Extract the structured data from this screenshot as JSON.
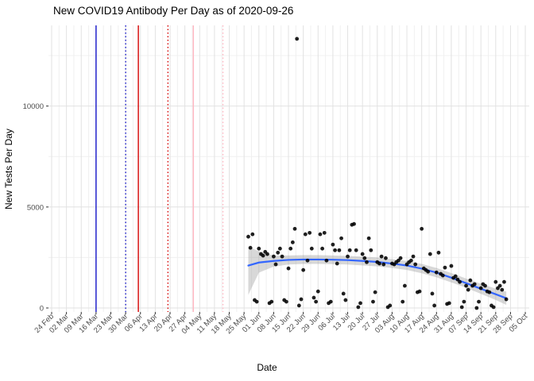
{
  "chart_data": {
    "type": "scatter",
    "title": "New COVID19 Antibody Per Day as of 2020-09-26",
    "xlabel": "Date",
    "ylabel": "New Tests Per Day",
    "x_domain": [
      "2020-02-24",
      "2020-10-05"
    ],
    "ylim": [
      -200,
      14000
    ],
    "grid": "on",
    "legend": "none",
    "y_ticks": [
      0,
      5000,
      10000
    ],
    "y_minor_ticks": [
      2500,
      7500,
      12500
    ],
    "x_tick_labels": [
      "24 Feb",
      "02 Mar",
      "09 Mar",
      "16 Mar",
      "23 Mar",
      "30 Mar",
      "06 Apr",
      "13 Apr",
      "20 Apr",
      "27 Apr",
      "04 May",
      "11 May",
      "18 May",
      "25 May",
      "01 Jun",
      "08 Jun",
      "15 Jun",
      "22 Jun",
      "29 Jun",
      "06 Jul",
      "13 Jul",
      "20 Jul",
      "27 Jul",
      "03 Aug",
      "10 Aug",
      "17 Aug",
      "24 Aug",
      "31 Aug",
      "07 Sep",
      "14 Sep",
      "21 Sep",
      "28 Sep",
      "05 Oct"
    ],
    "x_tick_interval_days": 7,
    "event_vlines": [
      {
        "date": "2020-03-16",
        "style": "solid",
        "color": "#1414c8"
      },
      {
        "date": "2020-03-30",
        "style": "dotted",
        "color": "#1414c8"
      },
      {
        "date": "2020-04-05",
        "style": "solid",
        "color": "#d40000"
      },
      {
        "date": "2020-04-19",
        "style": "dotted",
        "color": "#d40000"
      },
      {
        "date": "2020-05-01",
        "style": "solid",
        "color": "#ffb6c1"
      },
      {
        "date": "2020-05-15",
        "style": "dotted",
        "color": "#ffb6c1"
      }
    ],
    "points": [
      [
        "2020-05-27",
        3530
      ],
      [
        "2020-05-28",
        2980
      ],
      [
        "2020-05-29",
        3650
      ],
      [
        "2020-05-30",
        390
      ],
      [
        "2020-05-31",
        310
      ],
      [
        "2020-06-01",
        2940
      ],
      [
        "2020-06-02",
        2670
      ],
      [
        "2020-06-03",
        2590
      ],
      [
        "2020-06-04",
        2780
      ],
      [
        "2020-06-05",
        2670
      ],
      [
        "2020-06-06",
        240
      ],
      [
        "2020-06-07",
        310
      ],
      [
        "2020-06-08",
        2550
      ],
      [
        "2020-06-09",
        2160
      ],
      [
        "2020-06-10",
        2740
      ],
      [
        "2020-06-11",
        2940
      ],
      [
        "2020-06-12",
        2550
      ],
      [
        "2020-06-13",
        390
      ],
      [
        "2020-06-14",
        310
      ],
      [
        "2020-06-15",
        1960
      ],
      [
        "2020-06-16",
        2940
      ],
      [
        "2020-06-17",
        3250
      ],
      [
        "2020-06-18",
        3920
      ],
      [
        "2020-06-19",
        13330
      ],
      [
        "2020-06-20",
        120
      ],
      [
        "2020-06-21",
        430
      ],
      [
        "2020-06-22",
        1880
      ],
      [
        "2020-06-23",
        3650
      ],
      [
        "2020-06-24",
        2350
      ],
      [
        "2020-06-25",
        3720
      ],
      [
        "2020-06-26",
        2940
      ],
      [
        "2020-06-27",
        510
      ],
      [
        "2020-06-28",
        310
      ],
      [
        "2020-06-29",
        820
      ],
      [
        "2020-06-30",
        3650
      ],
      [
        "2020-07-01",
        2940
      ],
      [
        "2020-07-02",
        3720
      ],
      [
        "2020-07-03",
        2350
      ],
      [
        "2020-07-04",
        240
      ],
      [
        "2020-07-05",
        310
      ],
      [
        "2020-07-06",
        3140
      ],
      [
        "2020-07-07",
        2860
      ],
      [
        "2020-07-08",
        2200
      ],
      [
        "2020-07-09",
        2860
      ],
      [
        "2020-07-10",
        3450
      ],
      [
        "2020-07-11",
        710
      ],
      [
        "2020-07-12",
        390
      ],
      [
        "2020-07-13",
        2550
      ],
      [
        "2020-07-14",
        2860
      ],
      [
        "2020-07-15",
        4120
      ],
      [
        "2020-07-16",
        4160
      ],
      [
        "2020-07-17",
        2860
      ],
      [
        "2020-07-18",
        40
      ],
      [
        "2020-07-19",
        240
      ],
      [
        "2020-07-20",
        2670
      ],
      [
        "2020-07-21",
        2470
      ],
      [
        "2020-07-22",
        2270
      ],
      [
        "2020-07-23",
        3450
      ],
      [
        "2020-07-24",
        2860
      ],
      [
        "2020-07-25",
        310
      ],
      [
        "2020-07-26",
        780
      ],
      [
        "2020-07-27",
        2270
      ],
      [
        "2020-07-28",
        2200
      ],
      [
        "2020-07-29",
        2550
      ],
      [
        "2020-07-30",
        2160
      ],
      [
        "2020-07-31",
        2470
      ],
      [
        "2020-08-01",
        40
      ],
      [
        "2020-08-02",
        120
      ],
      [
        "2020-08-03",
        2200
      ],
      [
        "2020-08-04",
        2160
      ],
      [
        "2020-08-05",
        2270
      ],
      [
        "2020-08-06",
        2350
      ],
      [
        "2020-08-07",
        2470
      ],
      [
        "2020-08-08",
        310
      ],
      [
        "2020-08-09",
        1100
      ],
      [
        "2020-08-10",
        2160
      ],
      [
        "2020-08-11",
        2270
      ],
      [
        "2020-08-12",
        2350
      ],
      [
        "2020-08-13",
        2550
      ],
      [
        "2020-08-14",
        2160
      ],
      [
        "2020-08-15",
        780
      ],
      [
        "2020-08-16",
        820
      ],
      [
        "2020-08-17",
        3920
      ],
      [
        "2020-08-18",
        1960
      ],
      [
        "2020-08-19",
        1880
      ],
      [
        "2020-08-20",
        1800
      ],
      [
        "2020-08-21",
        2670
      ],
      [
        "2020-08-22",
        710
      ],
      [
        "2020-08-23",
        120
      ],
      [
        "2020-08-24",
        1760
      ],
      [
        "2020-08-25",
        2740
      ],
      [
        "2020-08-26",
        1690
      ],
      [
        "2020-08-27",
        1610
      ],
      [
        "2020-08-28",
        2000
      ],
      [
        "2020-08-29",
        200
      ],
      [
        "2020-08-30",
        240
      ],
      [
        "2020-08-31",
        2080
      ],
      [
        "2020-09-01",
        1490
      ],
      [
        "2020-09-02",
        1570
      ],
      [
        "2020-09-03",
        1410
      ],
      [
        "2020-09-04",
        1290
      ],
      [
        "2020-09-05",
        40
      ],
      [
        "2020-09-06",
        310
      ],
      [
        "2020-09-07",
        1100
      ],
      [
        "2020-09-08",
        900
      ],
      [
        "2020-09-09",
        1370
      ],
      [
        "2020-09-10",
        1100
      ],
      [
        "2020-09-11",
        1180
      ],
      [
        "2020-09-12",
        0
      ],
      [
        "2020-09-13",
        310
      ],
      [
        "2020-09-14",
        980
      ],
      [
        "2020-09-15",
        1180
      ],
      [
        "2020-09-16",
        1100
      ],
      [
        "2020-09-17",
        820
      ],
      [
        "2020-09-18",
        780
      ],
      [
        "2020-09-19",
        120
      ],
      [
        "2020-09-20",
        40
      ],
      [
        "2020-09-21",
        1290
      ],
      [
        "2020-09-22",
        980
      ],
      [
        "2020-09-23",
        1100
      ],
      [
        "2020-09-24",
        900
      ],
      [
        "2020-09-25",
        1290
      ],
      [
        "2020-09-26",
        430
      ]
    ],
    "smooth_line": [
      [
        "2020-05-27",
        2100
      ],
      [
        "2020-06-01",
        2250
      ],
      [
        "2020-06-08",
        2330
      ],
      [
        "2020-06-15",
        2380
      ],
      [
        "2020-06-22",
        2400
      ],
      [
        "2020-06-29",
        2400
      ],
      [
        "2020-07-06",
        2390
      ],
      [
        "2020-07-13",
        2370
      ],
      [
        "2020-07-20",
        2330
      ],
      [
        "2020-07-27",
        2280
      ],
      [
        "2020-08-03",
        2200
      ],
      [
        "2020-08-10",
        2100
      ],
      [
        "2020-08-17",
        1950
      ],
      [
        "2020-08-24",
        1750
      ],
      [
        "2020-08-31",
        1500
      ],
      [
        "2020-09-07",
        1230
      ],
      [
        "2020-09-14",
        950
      ],
      [
        "2020-09-21",
        680
      ],
      [
        "2020-09-26",
        480
      ]
    ],
    "ribbon": [
      [
        "2020-05-27",
        650,
        3050
      ],
      [
        "2020-06-01",
        1750,
        2800
      ],
      [
        "2020-06-08",
        2050,
        2600
      ],
      [
        "2020-06-15",
        2150,
        2600
      ],
      [
        "2020-06-22",
        2180,
        2620
      ],
      [
        "2020-06-29",
        2180,
        2620
      ],
      [
        "2020-07-06",
        2170,
        2600
      ],
      [
        "2020-07-13",
        2150,
        2580
      ],
      [
        "2020-07-20",
        2110,
        2540
      ],
      [
        "2020-07-27",
        2060,
        2500
      ],
      [
        "2020-08-03",
        1980,
        2420
      ],
      [
        "2020-08-10",
        1880,
        2330
      ],
      [
        "2020-08-17",
        1720,
        2180
      ],
      [
        "2020-08-24",
        1520,
        1980
      ],
      [
        "2020-08-31",
        1270,
        1730
      ],
      [
        "2020-09-07",
        1000,
        1460
      ],
      [
        "2020-09-14",
        700,
        1200
      ],
      [
        "2020-09-21",
        400,
        960
      ],
      [
        "2020-09-26",
        150,
        810
      ]
    ],
    "colors": {
      "point": "#000000",
      "smooth_line": "#3366ff",
      "ribbon": "#999999",
      "grid_major": "#e2e2e2",
      "grid_minor": "#f0f0f0",
      "axis_text": "#4d4d4d",
      "tick_mark": "#333333",
      "background": "#ffffff"
    }
  }
}
